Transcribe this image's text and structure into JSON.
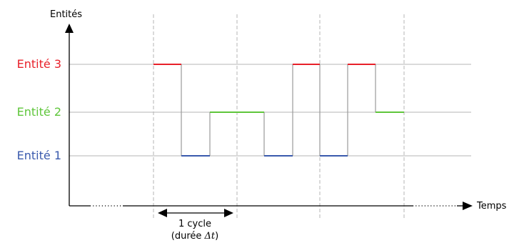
{
  "axes": {
    "y_title": "Entités",
    "x_title": "Temps"
  },
  "entities": [
    {
      "label": "Entité 3",
      "color": "#e8202a"
    },
    {
      "label": "Entité 2",
      "color": "#5fc63b"
    },
    {
      "label": "Entité 1",
      "color": "#3a5aad"
    }
  ],
  "colors": {
    "axis": "#000000",
    "grid": "#b4b4b4",
    "transition": "#999999"
  },
  "timeline": {
    "levels": [
      3,
      1,
      2,
      2,
      1,
      3,
      1,
      3,
      2
    ]
  },
  "cycle": {
    "line1": "1 cycle",
    "line2_prefix": "(durée ",
    "line2_symbol": "Δt",
    "line2_suffix": ")"
  }
}
